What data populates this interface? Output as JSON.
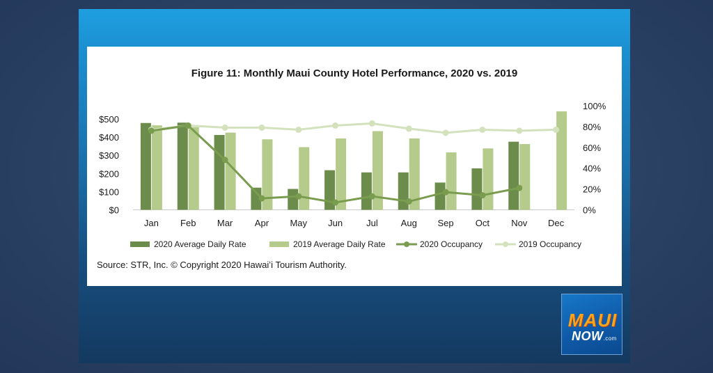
{
  "chart_data": {
    "type": "bar",
    "title": "Figure 11: Monthly Maui County Hotel Performance, 2020 vs. 2019",
    "categories": [
      "Jan",
      "Feb",
      "Mar",
      "Apr",
      "May",
      "Jun",
      "Jul",
      "Aug",
      "Sep",
      "Oct",
      "Nov",
      "Dec"
    ],
    "y_left": {
      "ticks": [
        "$0",
        "$100",
        "$200",
        "$300",
        "$400",
        "$500"
      ],
      "ylim": [
        0,
        560
      ]
    },
    "y_right": {
      "ticks": [
        "0%",
        "20%",
        "40%",
        "60%",
        "80%",
        "100%"
      ],
      "ylim": [
        0,
        100
      ]
    },
    "series": [
      {
        "name": "2020 Average Daily Rate",
        "type": "bar",
        "axis": "left",
        "color": "#6b8c4a",
        "values": [
          478,
          480,
          412,
          122,
          115,
          218,
          206,
          206,
          150,
          228,
          375,
          null
        ]
      },
      {
        "name": "2019 Average Daily Rate",
        "type": "bar",
        "axis": "left",
        "color": "#b5cb8c",
        "values": [
          465,
          455,
          425,
          388,
          345,
          393,
          433,
          393,
          316,
          338,
          362,
          542
        ]
      },
      {
        "name": "2020 Occupancy",
        "type": "line",
        "axis": "right",
        "color": "#7a9c4e",
        "values": [
          76,
          81,
          48,
          11,
          13,
          7,
          13,
          8,
          17,
          14,
          21,
          null
        ]
      },
      {
        "name": "2019 Occupancy",
        "type": "line",
        "axis": "right",
        "color": "#d3e2bd",
        "values": [
          77,
          81,
          79,
          79,
          77,
          81,
          83,
          78,
          74,
          77,
          76,
          77
        ]
      }
    ],
    "legend_position": "bottom",
    "source": "Source: STR, Inc. © Copyright 2020 Hawaiʻi Tourism Authority."
  },
  "logo": {
    "line1": "MAUI",
    "line2": "NOW",
    "suffix": ".com"
  }
}
